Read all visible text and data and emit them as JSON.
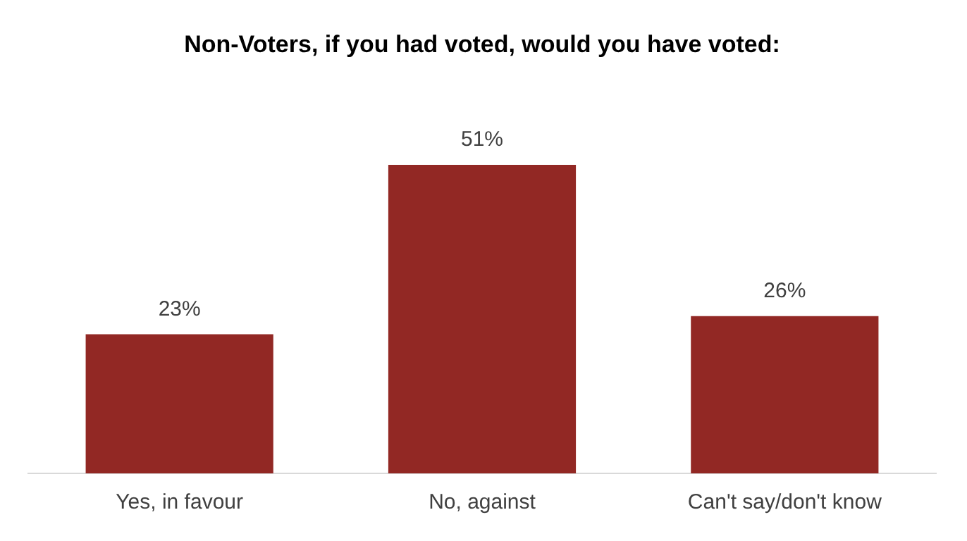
{
  "chart_data": {
    "type": "bar",
    "title": "Non-Voters, if you had voted, would you have voted:",
    "categories": [
      "Yes, in favour",
      "No, against",
      "Can't say/don't know"
    ],
    "values": [
      23,
      51,
      26
    ],
    "value_labels": [
      "23%",
      "51%",
      "26%"
    ],
    "color": "#922824",
    "grid": false,
    "legend": false,
    "tick_labels": "x"
  }
}
